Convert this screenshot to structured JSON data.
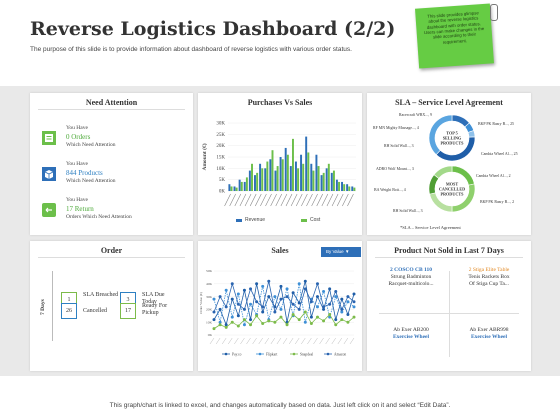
{
  "header": {
    "title": "Reverse Logistics Dashboard (2/2)",
    "subtitle": "The purpose of this slide is to provide information about dashboard of reverse logistics with various order status."
  },
  "sticky_note": {
    "text": "This slide provides glimpse about the reverse logistics dashboard with order status. Users can make changes in the slide according to their requirement."
  },
  "need_attention": {
    "title": "Need Attention",
    "items": [
      {
        "line1": "You Have",
        "value": "0 Orders",
        "line3": "Which Need Attention"
      },
      {
        "line1": "You Have",
        "value": "844 Products",
        "line3": "Which Need Attention"
      },
      {
        "line1": "You Have",
        "value": "17 Return",
        "line3": "Orders Which Need Attention"
      }
    ]
  },
  "purchases_vs_sales": {
    "title": "Purchases Vs Sales",
    "ylabel": "Amount (€)",
    "legend": [
      "Revenue",
      "Cost"
    ]
  },
  "sla": {
    "title": "SLA – Service Level Agreement",
    "top_center": "TOP 5 SELLING PRODUCTS",
    "bottom_center": "MOST CANCELLED PRODUCTS",
    "top_labels": [
      "Racercraft WBX..., 9",
      "RF MN Mighty Massage..., 4",
      "RH Solid Wall..., 3",
      "BKP PK Razry B..., 25",
      "Cambia Wheel Al..., 25"
    ],
    "bottom_labels": [
      "ADRO Wolf Mount..., 3",
      "BA Weight Bott..., 4",
      "RH Solid Wall..., 3",
      "Cambia Wheel Al..., 2",
      "BKP PK Razry B..., 2"
    ],
    "note": "*SLA – Service Level Agreement"
  },
  "order": {
    "title": "Order",
    "axis": "7 Days",
    "items": [
      {
        "value": "1",
        "label": "SLA Breached"
      },
      {
        "value": "3",
        "label": "SLA Due Today"
      },
      {
        "value": "26",
        "label": "Cancelled"
      },
      {
        "value": "17",
        "label": "Ready For Pickup"
      }
    ]
  },
  "sales": {
    "title": "Sales",
    "dropdown": "By Value",
    "ylabel": "Order Value (€)",
    "legend": [
      "Pay.co",
      "Flipkart",
      "Snapdeal",
      "Amazon"
    ]
  },
  "not_sold": {
    "title": "Product Not Sold in Last 7 Days",
    "items": [
      {
        "line1": "2 COSCO CB 110",
        "line2": "Strung Badminton",
        "line3": "Racquet-multicolo..."
      },
      {
        "line1": "2 Stiga Elite Table",
        "line2": "Tenis Rackets Box",
        "line3": "Of Stiga Cup Ta..."
      },
      {
        "line1": "Ab Exer AB200",
        "line2": "Exercise Wheel"
      },
      {
        "line1": "Ab Exer ABR998",
        "line2": "Exercise Wheel"
      }
    ]
  },
  "footer": {
    "text": "This graph/chart is linked to excel, and changes automatically based on data. Just left click on it and select “Edit Data”."
  },
  "chart_data": [
    {
      "type": "bar",
      "title": "Purchases Vs Sales",
      "ylabel": "Amount (€)",
      "ylim": [
        0,
        30000
      ],
      "yticks": [
        "0K",
        "5K",
        "10K",
        "15K",
        "20K",
        "25K",
        "30K"
      ],
      "series": [
        {
          "name": "Revenue",
          "color": "#2e6fb8",
          "values": [
            3000,
            2000,
            5000,
            4000,
            9000,
            7000,
            12000,
            10000,
            14000,
            9000,
            15000,
            19000,
            11000,
            13000,
            16000,
            24000,
            12000,
            16000,
            7000,
            10000,
            8000,
            5000,
            4000,
            3000,
            2000
          ]
        },
        {
          "name": "Cost",
          "color": "#6cbf4a",
          "values": [
            2000,
            1500,
            4000,
            6000,
            12000,
            8000,
            10000,
            13000,
            18000,
            11000,
            14000,
            16000,
            23000,
            10000,
            12000,
            17000,
            9000,
            11000,
            8000,
            12000,
            9000,
            4000,
            3000,
            2000,
            1500
          ]
        }
      ]
    },
    {
      "type": "pie",
      "title": "TOP 5 SELLING PRODUCTS",
      "values": [
        9,
        4,
        3,
        25,
        25
      ]
    },
    {
      "type": "pie",
      "title": "MOST CANCELLED PRODUCTS",
      "values": [
        3,
        4,
        3,
        2,
        2
      ]
    },
    {
      "type": "line",
      "title": "Sales",
      "ylabel": "Order Value (€)",
      "ylim": [
        0,
        50000
      ],
      "yticks": [
        "0K",
        "10K",
        "20K",
        "30K",
        "40K",
        "50K"
      ],
      "series": [
        {
          "name": "Pay.co",
          "color": "#1f5ea8",
          "values": [
            12000,
            20000,
            8000,
            28000,
            15000,
            35000,
            12000,
            40000,
            18000,
            30000,
            22000,
            38000,
            10000,
            33000,
            25000,
            42000,
            14000,
            30000,
            20000,
            36000,
            12000,
            28000,
            16000,
            32000
          ]
        },
        {
          "name": "Flipkart",
          "color": "#3d8fd6",
          "values": [
            28000,
            10000,
            35000,
            14000,
            32000,
            8000,
            24000,
            16000,
            38000,
            12000,
            30000,
            20000,
            36000,
            15000,
            40000,
            10000,
            28000,
            22000,
            34000,
            14000,
            30000,
            18000,
            26000,
            22000
          ]
        },
        {
          "name": "Snapdeal",
          "color": "#7cbb4a",
          "values": [
            5000,
            8000,
            6000,
            10000,
            7000,
            12000,
            8000,
            15000,
            9000,
            11000,
            10000,
            14000,
            8000,
            16000,
            12000,
            18000,
            9000,
            14000,
            11000,
            16000,
            8000,
            12000,
            10000,
            14000
          ]
        },
        {
          "name": "Amazon",
          "color": "#2a64b0",
          "values": [
            18000,
            30000,
            22000,
            40000,
            24000,
            20000,
            36000,
            26000,
            22000,
            42000,
            18000,
            28000,
            30000,
            24000,
            20000,
            36000,
            26000,
            40000,
            22000,
            24000,
            34000,
            20000,
            30000,
            26000
          ]
        }
      ]
    }
  ]
}
